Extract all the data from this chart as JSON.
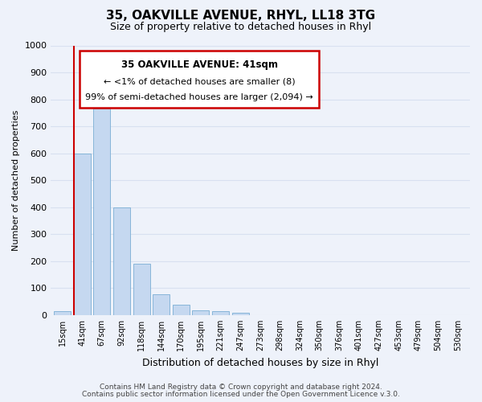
{
  "title": "35, OAKVILLE AVENUE, RHYL, LL18 3TG",
  "subtitle": "Size of property relative to detached houses in Rhyl",
  "bar_labels": [
    "15sqm",
    "41sqm",
    "67sqm",
    "92sqm",
    "118sqm",
    "144sqm",
    "170sqm",
    "195sqm",
    "221sqm",
    "247sqm",
    "273sqm",
    "298sqm",
    "324sqm",
    "350sqm",
    "376sqm",
    "401sqm",
    "427sqm",
    "453sqm",
    "479sqm",
    "504sqm",
    "530sqm"
  ],
  "bar_values": [
    15,
    600,
    765,
    400,
    190,
    78,
    40,
    18,
    15,
    10,
    0,
    0,
    0,
    0,
    0,
    0,
    0,
    0,
    0,
    0,
    0
  ],
  "bar_color": "#c5d8f0",
  "bar_edge_color": "#7aaed4",
  "highlight_line_index": 1,
  "highlight_line_color": "#cc0000",
  "ylabel": "Number of detached properties",
  "xlabel": "Distribution of detached houses by size in Rhyl",
  "ylim": [
    0,
    1000
  ],
  "yticks": [
    0,
    100,
    200,
    300,
    400,
    500,
    600,
    700,
    800,
    900,
    1000
  ],
  "annotation_title": "35 OAKVILLE AVENUE: 41sqm",
  "annotation_line1": "← <1% of detached houses are smaller (8)",
  "annotation_line2": "99% of semi-detached houses are larger (2,094) →",
  "annotation_box_color": "#ffffff",
  "annotation_box_edge": "#cc0000",
  "footer_line1": "Contains HM Land Registry data © Crown copyright and database right 2024.",
  "footer_line2": "Contains public sector information licensed under the Open Government Licence v.3.0.",
  "background_color": "#eef2fa",
  "grid_color": "#d8e0f0",
  "title_fontsize": 11,
  "subtitle_fontsize": 9
}
